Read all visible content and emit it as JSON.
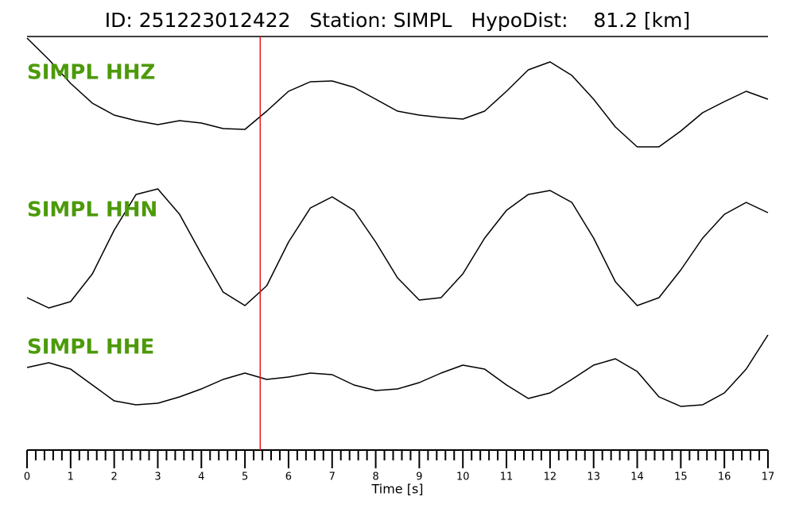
{
  "chart_data": {
    "type": "line",
    "title": "ID: 251223012422   Station: SIMPL   HypoDist:    81.2 [km]",
    "x_label": "Time [s]",
    "xlim": [
      0,
      17
    ],
    "xticks": [
      0,
      1,
      2,
      3,
      4,
      5,
      6,
      7,
      8,
      9,
      10,
      11,
      12,
      13,
      14,
      15,
      16,
      17
    ],
    "x": [
      0,
      0.5,
      1,
      1.5,
      2,
      2.5,
      3,
      3.5,
      4,
      4.5,
      5,
      5.5,
      6,
      6.5,
      7,
      7.5,
      8,
      8.5,
      9,
      9.5,
      10,
      10.5,
      11,
      11.5,
      12,
      12.5,
      13,
      13.5,
      14,
      14.5,
      15,
      15.5,
      16,
      16.5,
      17
    ],
    "label_color": "#4c9a0a",
    "pick_time": 5.35,
    "pick_color": "#e8141c",
    "series": [
      {
        "name": "SIMPL HHZ",
        "color": "#000000",
        "ylim": [
          -70,
          84
        ],
        "values": [
          82,
          55,
          25,
          0,
          -15,
          -22,
          -27,
          -22,
          -25,
          -32,
          -33,
          -10,
          15,
          27,
          28,
          20,
          5,
          -10,
          -15,
          -18,
          -20,
          -10,
          15,
          42,
          52,
          35,
          5,
          -30,
          -55,
          -55,
          -35,
          -12,
          2,
          15,
          5
        ]
      },
      {
        "name": "SIMPL HHN",
        "color": "#000000",
        "ylim": [
          -85,
          85
        ],
        "values": [
          -65,
          -78,
          -70,
          -35,
          20,
          65,
          72,
          40,
          -10,
          -58,
          -75,
          -50,
          5,
          48,
          62,
          45,
          5,
          -40,
          -68,
          -65,
          -35,
          10,
          45,
          65,
          70,
          55,
          10,
          -45,
          -75,
          -65,
          -30,
          10,
          40,
          55,
          42
        ]
      },
      {
        "name": "SIMPL HHE",
        "color": "#000000",
        "ylim": [
          -60,
          60
        ],
        "values": [
          12,
          18,
          10,
          -10,
          -30,
          -35,
          -33,
          -25,
          -15,
          -3,
          5,
          -3,
          0,
          5,
          3,
          -10,
          -17,
          -15,
          -7,
          5,
          15,
          10,
          -10,
          -27,
          -20,
          -3,
          15,
          23,
          7,
          -25,
          -37,
          -35,
          -20,
          10,
          53
        ]
      }
    ]
  }
}
